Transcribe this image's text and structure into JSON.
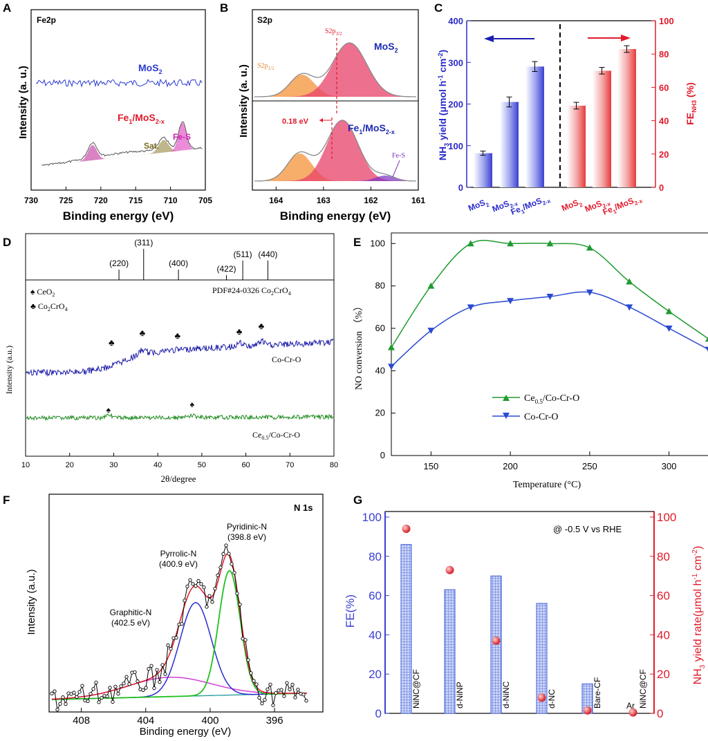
{
  "colors": {
    "blue_bar": "#3b3fd0",
    "red_bar": "#e83a3a",
    "navy_trace": "#1c1ca8",
    "green_trace": "#1e8a1e",
    "green_line": "#1f9a2f",
    "blue_line": "#2a4ad0",
    "grid_bar": "#4a66d8",
    "red_dot": "#e0202a"
  },
  "panels": {
    "A": {
      "letter": "A",
      "tag": "Fe2p",
      "ylabel": "Intensity (a. u.)",
      "xlabel": "Binding energy (eV)",
      "label_mos2": "MoS",
      "label_mos2_sub": "2",
      "label_fe1": "Fe",
      "label_fe1_sub1": "1",
      "label_fe1_mid": "/MoS",
      "label_fe1_sub2": "2-x",
      "peak_fes": "Fe-S",
      "peak_sat": "Sat."
    },
    "B": {
      "letter": "B",
      "tag": "S2p",
      "ylabel": "Intensity (a. u.)",
      "xlabel": "Binding energy (eV)",
      "s2p32": "S2p",
      "s2p32_sub": "3/2",
      "s2p12": "S2p",
      "s2p12_sub": "1/2",
      "shift": "0.18 eV",
      "label_mos2": "MoS",
      "label_mos2_sub": "2",
      "label_fe1": "Fe",
      "label_fe1_sub1": "1",
      "label_fe1_mid": "/MoS",
      "label_fe1_sub2": "2-x",
      "fes": "Fe-S"
    },
    "C": {
      "letter": "C",
      "ylabel_left": "NH",
      "ylabel_left_sub": "3",
      "ylabel_left_rest": " yield (μmol h",
      "ylabel_left_sup1": "-1",
      "ylabel_left_mid": " cm",
      "ylabel_left_sup2": "-2",
      "ylabel_left_end": ")",
      "ylabel_right": "FE",
      "ylabel_right_sub": "NH3",
      "ylabel_right_end": " (%)"
    },
    "D": {
      "letter": "D",
      "xlabel": "2θ/degree",
      "ylabel": "Intensity (a.u.)",
      "pdf_label": "PDF#24-0326 Co",
      "pdf_sub1": "2",
      "pdf_mid": "CrO",
      "pdf_sub2": "4",
      "legend1": "CeO",
      "legend1_sub": "2",
      "legend2": "Co",
      "legend2_sub": "2",
      "legend2_mid": "CrO",
      "legend2_sub2": "4",
      "trace1": "Co-Cr-O",
      "trace2": "Ce",
      "trace2_sub": "0.5",
      "trace2_end": "/Co-Cr-O",
      "ref_lines": [
        {
          "label": "(220)",
          "pos": 31.2
        },
        {
          "label": "(311)",
          "pos": 36.8
        },
        {
          "label": "(400)",
          "pos": 44.7
        },
        {
          "label": "(422)",
          "pos": 55.6
        },
        {
          "label": "(511)",
          "pos": 59.3
        },
        {
          "label": "(440)",
          "pos": 65.0
        }
      ]
    },
    "E": {
      "letter": "E",
      "xlabel": "Temperature (°C)",
      "ylabel": "NO conversion （%）",
      "legend1": "Ce",
      "legend1_sub": "0.5",
      "legend1_end": "/Co-Cr-O",
      "legend2": "Co-Cr-O"
    },
    "F": {
      "letter": "F",
      "tag": "N 1s",
      "ylabel": "Intensity (a.u.)",
      "xlabel": "Binding energy (eV)",
      "pyridinic": "Pyridinic-N",
      "pyridinic_ev": "(398.8 eV)",
      "pyrrolic": "Pyrrolic-N",
      "pyrrolic_ev": "(400.9 eV)",
      "graphitic": "Graphitic-N",
      "graphitic_ev": "(402.5 eV)"
    },
    "G": {
      "letter": "G",
      "note": "@ -0.5 V vs RHE",
      "ylabel_left": "FE(%)",
      "ylabel_right": "NH",
      "ylabel_right_sub": "3",
      "ylabel_right_rest": " yield rate(μmol h",
      "ylabel_right_sup1": "-1",
      "ylabel_right_mid": " cm",
      "ylabel_right_sup2": "-2",
      "ylabel_right_end": ")"
    }
  },
  "chart_data": [
    {
      "id": "A",
      "type": "line",
      "title": "Fe2p",
      "xlabel": "Binding energy (eV)",
      "ylabel": "Intensity (a. u.)",
      "xlim": [
        730,
        705
      ],
      "xticks": [
        730,
        725,
        720,
        715,
        710,
        705
      ],
      "series": [
        {
          "name": "MoS2",
          "trace": "flat noisy"
        },
        {
          "name": "Fe1/MoS2-x",
          "peaks_eV": [
            721.2,
            711.0,
            708.3
          ],
          "peak_labels": [
            "",
            "Sat.",
            "Fe-S"
          ]
        }
      ]
    },
    {
      "id": "B",
      "type": "line",
      "title": "S2p",
      "xlabel": "Binding energy (eV)",
      "ylabel": "Intensity (a. u.)",
      "xlim": [
        164.5,
        161
      ],
      "xticks": [
        164,
        163,
        162,
        161
      ],
      "series": [
        {
          "name": "MoS2",
          "peaks_eV": [
            163.45,
            162.45
          ]
        },
        {
          "name": "Fe1/MoS2-x",
          "peaks_eV": [
            163.5,
            162.6,
            161.7
          ],
          "shift_eV": 0.18
        }
      ]
    },
    {
      "id": "C",
      "type": "bar",
      "categories": [
        "MoS2",
        "MoS2-x",
        "Fe1/MoS2-x"
      ],
      "series": [
        {
          "name": "NH3 yield (μmol h-1 cm-2)",
          "axis": "left",
          "values": [
            82,
            205,
            290
          ],
          "errors": [
            5,
            12,
            12
          ]
        },
        {
          "name": "FE NH3 (%)",
          "axis": "right",
          "values": [
            49,
            70,
            83
          ],
          "errors": [
            2,
            2,
            2
          ]
        }
      ],
      "ylim_left": [
        0,
        400
      ],
      "yticks_left": [
        0,
        100,
        200,
        300,
        400
      ],
      "ylim_right": [
        0,
        100
      ],
      "yticks_right": [
        0,
        20,
        40,
        60,
        80,
        100
      ]
    },
    {
      "id": "D",
      "type": "line",
      "xlabel": "2θ/degree",
      "ylabel": "Intensity (a.u.)",
      "xlim": [
        10,
        80
      ],
      "xticks": [
        10,
        20,
        30,
        40,
        50,
        60,
        70,
        80
      ],
      "series": [
        {
          "name": "Co-Cr-O",
          "marked_peaks": [
            29.5,
            36.5,
            44.5,
            58.5,
            63.5
          ]
        },
        {
          "name": "Ce0.5/Co-Cr-O",
          "marked_peaks": [
            28.8,
            47.8
          ]
        }
      ]
    },
    {
      "id": "E",
      "type": "line",
      "xlabel": "Temperature (°C)",
      "ylabel": "NO conversion （%）",
      "xlim": [
        125,
        325
      ],
      "xticks": [
        150,
        200,
        250,
        300
      ],
      "ylim": [
        0,
        105
      ],
      "yticks": [
        0,
        20,
        40,
        60,
        80,
        100
      ],
      "x": [
        125,
        150,
        175,
        200,
        225,
        250,
        275,
        300,
        325
      ],
      "series": [
        {
          "name": "Ce0.5/Co-Cr-O",
          "values": [
            51,
            80,
            100,
            100,
            100,
            98,
            82,
            68,
            55
          ]
        },
        {
          "name": "Co-Cr-O",
          "values": [
            42,
            59,
            70,
            73,
            75,
            77,
            70,
            60,
            50
          ]
        }
      ]
    },
    {
      "id": "F",
      "type": "line",
      "title": "N 1s",
      "xlabel": "Binding energy (eV)",
      "ylabel": "Intensity (a.u.)",
      "xlim": [
        410,
        393
      ],
      "xticks": [
        408,
        404,
        400,
        396
      ],
      "components": [
        {
          "name": "Pyridinic-N",
          "center_eV": 398.8
        },
        {
          "name": "Pyrrolic-N",
          "center_eV": 400.9
        },
        {
          "name": "Graphitic-N",
          "center_eV": 402.5
        }
      ]
    },
    {
      "id": "G",
      "type": "bar",
      "note": "@ -0.5 V vs RHE",
      "categories": [
        "NiNC@CF",
        "d-NiNP",
        "d-NiNC",
        "d-NC",
        "Bare-CF",
        "NiNC@CF"
      ],
      "category_extra": [
        "",
        "",
        "",
        "",
        "",
        "Ar"
      ],
      "series": [
        {
          "name": "FE(%)",
          "axis": "left",
          "type": "bar",
          "values": [
            86,
            63,
            70,
            56,
            15,
            0
          ]
        },
        {
          "name": "NH3 yield rate (μmol h-1 cm-2)",
          "axis": "right",
          "type": "scatter",
          "values": [
            94,
            73,
            37,
            8,
            1.5,
            0.5
          ]
        }
      ],
      "ylim_left": [
        0,
        100
      ],
      "yticks_left": [
        0,
        20,
        40,
        60,
        80,
        100
      ],
      "ylim_right": [
        0,
        100
      ],
      "yticks_right": [
        0,
        20,
        40,
        60,
        80,
        100
      ]
    }
  ]
}
